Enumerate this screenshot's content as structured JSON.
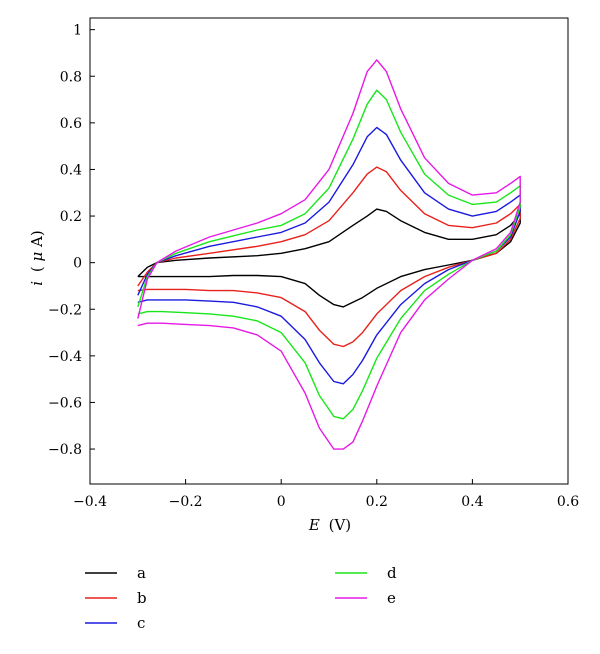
{
  "chart_data": {
    "type": "line",
    "title": "",
    "xlabel": "E (V)",
    "xlabel_var": "E",
    "xlabel_unit": "(V)",
    "ylabel": "i (μA)",
    "ylabel_var": "i",
    "ylabel_unit_open": "(",
    "ylabel_unit_mu": "μ",
    "ylabel_unit_rest": "A)",
    "xlim": [
      -0.4,
      0.6
    ],
    "ylim": [
      -0.95,
      1.05
    ],
    "xticks": [
      -0.4,
      -0.2,
      0,
      0.2,
      0.4,
      0.6
    ],
    "xtick_labels": [
      "−0.4",
      "−0.2",
      "0",
      "0.2",
      "0.4",
      "0.6"
    ],
    "yticks": [
      -0.8,
      -0.6,
      -0.4,
      -0.2,
      0,
      0.2,
      0.4,
      0.6,
      0.8,
      1
    ],
    "ytick_labels": [
      "−0.8",
      "−0.6",
      "−0.4",
      "−0.2",
      "0",
      "0.2",
      "0.4",
      "0.6",
      "0.8",
      "1"
    ],
    "grid": false,
    "legend_position": "bottom",
    "series": [
      {
        "name": "a",
        "color": "#000000",
        "x": [
          -0.3,
          -0.28,
          -0.26,
          -0.22,
          -0.15,
          -0.05,
          0.0,
          0.05,
          0.1,
          0.15,
          0.18,
          0.2,
          0.22,
          0.25,
          0.3,
          0.35,
          0.4,
          0.45,
          0.48,
          0.5,
          0.5,
          0.48,
          0.45,
          0.4,
          0.35,
          0.3,
          0.25,
          0.2,
          0.17,
          0.15,
          0.13,
          0.11,
          0.08,
          0.05,
          0.0,
          -0.05,
          -0.1,
          -0.15,
          -0.2,
          -0.25,
          -0.28,
          -0.3
        ],
        "y": [
          -0.06,
          -0.02,
          0.0,
          0.01,
          0.02,
          0.03,
          0.04,
          0.06,
          0.09,
          0.16,
          0.2,
          0.23,
          0.22,
          0.18,
          0.13,
          0.1,
          0.1,
          0.12,
          0.16,
          0.21,
          0.17,
          0.09,
          0.04,
          0.01,
          -0.01,
          -0.03,
          -0.06,
          -0.11,
          -0.15,
          -0.17,
          -0.19,
          -0.18,
          -0.14,
          -0.09,
          -0.06,
          -0.055,
          -0.055,
          -0.06,
          -0.06,
          -0.06,
          -0.06,
          -0.06
        ]
      },
      {
        "name": "b",
        "color": "#e8211b",
        "x": [
          -0.3,
          -0.28,
          -0.26,
          -0.22,
          -0.15,
          -0.05,
          0.0,
          0.05,
          0.1,
          0.15,
          0.18,
          0.2,
          0.22,
          0.25,
          0.3,
          0.35,
          0.4,
          0.45,
          0.48,
          0.5,
          0.5,
          0.48,
          0.45,
          0.4,
          0.35,
          0.3,
          0.25,
          0.2,
          0.17,
          0.15,
          0.13,
          0.11,
          0.08,
          0.05,
          0.0,
          -0.05,
          -0.1,
          -0.15,
          -0.2,
          -0.25,
          -0.28,
          -0.3
        ],
        "y": [
          -0.1,
          -0.04,
          0.0,
          0.02,
          0.04,
          0.07,
          0.09,
          0.12,
          0.18,
          0.3,
          0.38,
          0.41,
          0.39,
          0.31,
          0.21,
          0.16,
          0.15,
          0.17,
          0.21,
          0.25,
          0.19,
          0.1,
          0.04,
          0.01,
          -0.02,
          -0.06,
          -0.12,
          -0.22,
          -0.3,
          -0.34,
          -0.36,
          -0.35,
          -0.29,
          -0.21,
          -0.15,
          -0.13,
          -0.12,
          -0.12,
          -0.115,
          -0.115,
          -0.115,
          -0.12
        ]
      },
      {
        "name": "c",
        "color": "#1a1ae0",
        "x": [
          -0.3,
          -0.28,
          -0.26,
          -0.22,
          -0.15,
          -0.05,
          0.0,
          0.05,
          0.1,
          0.15,
          0.18,
          0.2,
          0.22,
          0.25,
          0.3,
          0.35,
          0.4,
          0.45,
          0.48,
          0.5,
          0.5,
          0.48,
          0.45,
          0.4,
          0.35,
          0.3,
          0.25,
          0.2,
          0.17,
          0.15,
          0.13,
          0.11,
          0.08,
          0.05,
          0.0,
          -0.05,
          -0.1,
          -0.15,
          -0.2,
          -0.25,
          -0.28,
          -0.3
        ],
        "y": [
          -0.14,
          -0.05,
          0.0,
          0.03,
          0.07,
          0.11,
          0.13,
          0.17,
          0.26,
          0.42,
          0.54,
          0.58,
          0.55,
          0.44,
          0.3,
          0.23,
          0.2,
          0.22,
          0.26,
          0.29,
          0.22,
          0.11,
          0.05,
          0.01,
          -0.03,
          -0.09,
          -0.18,
          -0.31,
          -0.42,
          -0.48,
          -0.52,
          -0.51,
          -0.43,
          -0.33,
          -0.23,
          -0.19,
          -0.17,
          -0.165,
          -0.16,
          -0.16,
          -0.16,
          -0.17
        ]
      },
      {
        "name": "d",
        "color": "#19e619",
        "x": [
          -0.3,
          -0.28,
          -0.26,
          -0.22,
          -0.15,
          -0.05,
          0.0,
          0.05,
          0.1,
          0.15,
          0.18,
          0.2,
          0.22,
          0.25,
          0.3,
          0.35,
          0.4,
          0.45,
          0.48,
          0.5,
          0.5,
          0.48,
          0.45,
          0.4,
          0.35,
          0.3,
          0.25,
          0.2,
          0.17,
          0.15,
          0.13,
          0.11,
          0.08,
          0.05,
          0.0,
          -0.05,
          -0.1,
          -0.15,
          -0.2,
          -0.25,
          -0.28,
          -0.3
        ],
        "y": [
          -0.19,
          -0.06,
          0.0,
          0.04,
          0.09,
          0.14,
          0.16,
          0.21,
          0.32,
          0.53,
          0.68,
          0.74,
          0.7,
          0.56,
          0.38,
          0.29,
          0.25,
          0.26,
          0.3,
          0.33,
          0.24,
          0.12,
          0.05,
          0.01,
          -0.05,
          -0.12,
          -0.24,
          -0.41,
          -0.55,
          -0.63,
          -0.67,
          -0.66,
          -0.57,
          -0.43,
          -0.3,
          -0.25,
          -0.23,
          -0.22,
          -0.215,
          -0.21,
          -0.21,
          -0.22
        ]
      },
      {
        "name": "e",
        "color": "#e619e6",
        "x": [
          -0.3,
          -0.28,
          -0.26,
          -0.22,
          -0.15,
          -0.05,
          0.0,
          0.05,
          0.1,
          0.15,
          0.18,
          0.2,
          0.22,
          0.25,
          0.3,
          0.35,
          0.4,
          0.45,
          0.48,
          0.5,
          0.5,
          0.48,
          0.45,
          0.4,
          0.35,
          0.3,
          0.25,
          0.2,
          0.17,
          0.15,
          0.13,
          0.11,
          0.08,
          0.05,
          0.0,
          -0.05,
          -0.1,
          -0.15,
          -0.2,
          -0.25,
          -0.28,
          -0.3
        ],
        "y": [
          -0.24,
          -0.07,
          0.0,
          0.05,
          0.11,
          0.17,
          0.21,
          0.27,
          0.4,
          0.64,
          0.82,
          0.87,
          0.82,
          0.66,
          0.45,
          0.34,
          0.29,
          0.3,
          0.34,
          0.37,
          0.26,
          0.13,
          0.06,
          0.01,
          -0.07,
          -0.16,
          -0.3,
          -0.53,
          -0.68,
          -0.77,
          -0.8,
          -0.8,
          -0.71,
          -0.56,
          -0.38,
          -0.31,
          -0.28,
          -0.27,
          -0.265,
          -0.26,
          -0.26,
          -0.27
        ]
      }
    ]
  }
}
